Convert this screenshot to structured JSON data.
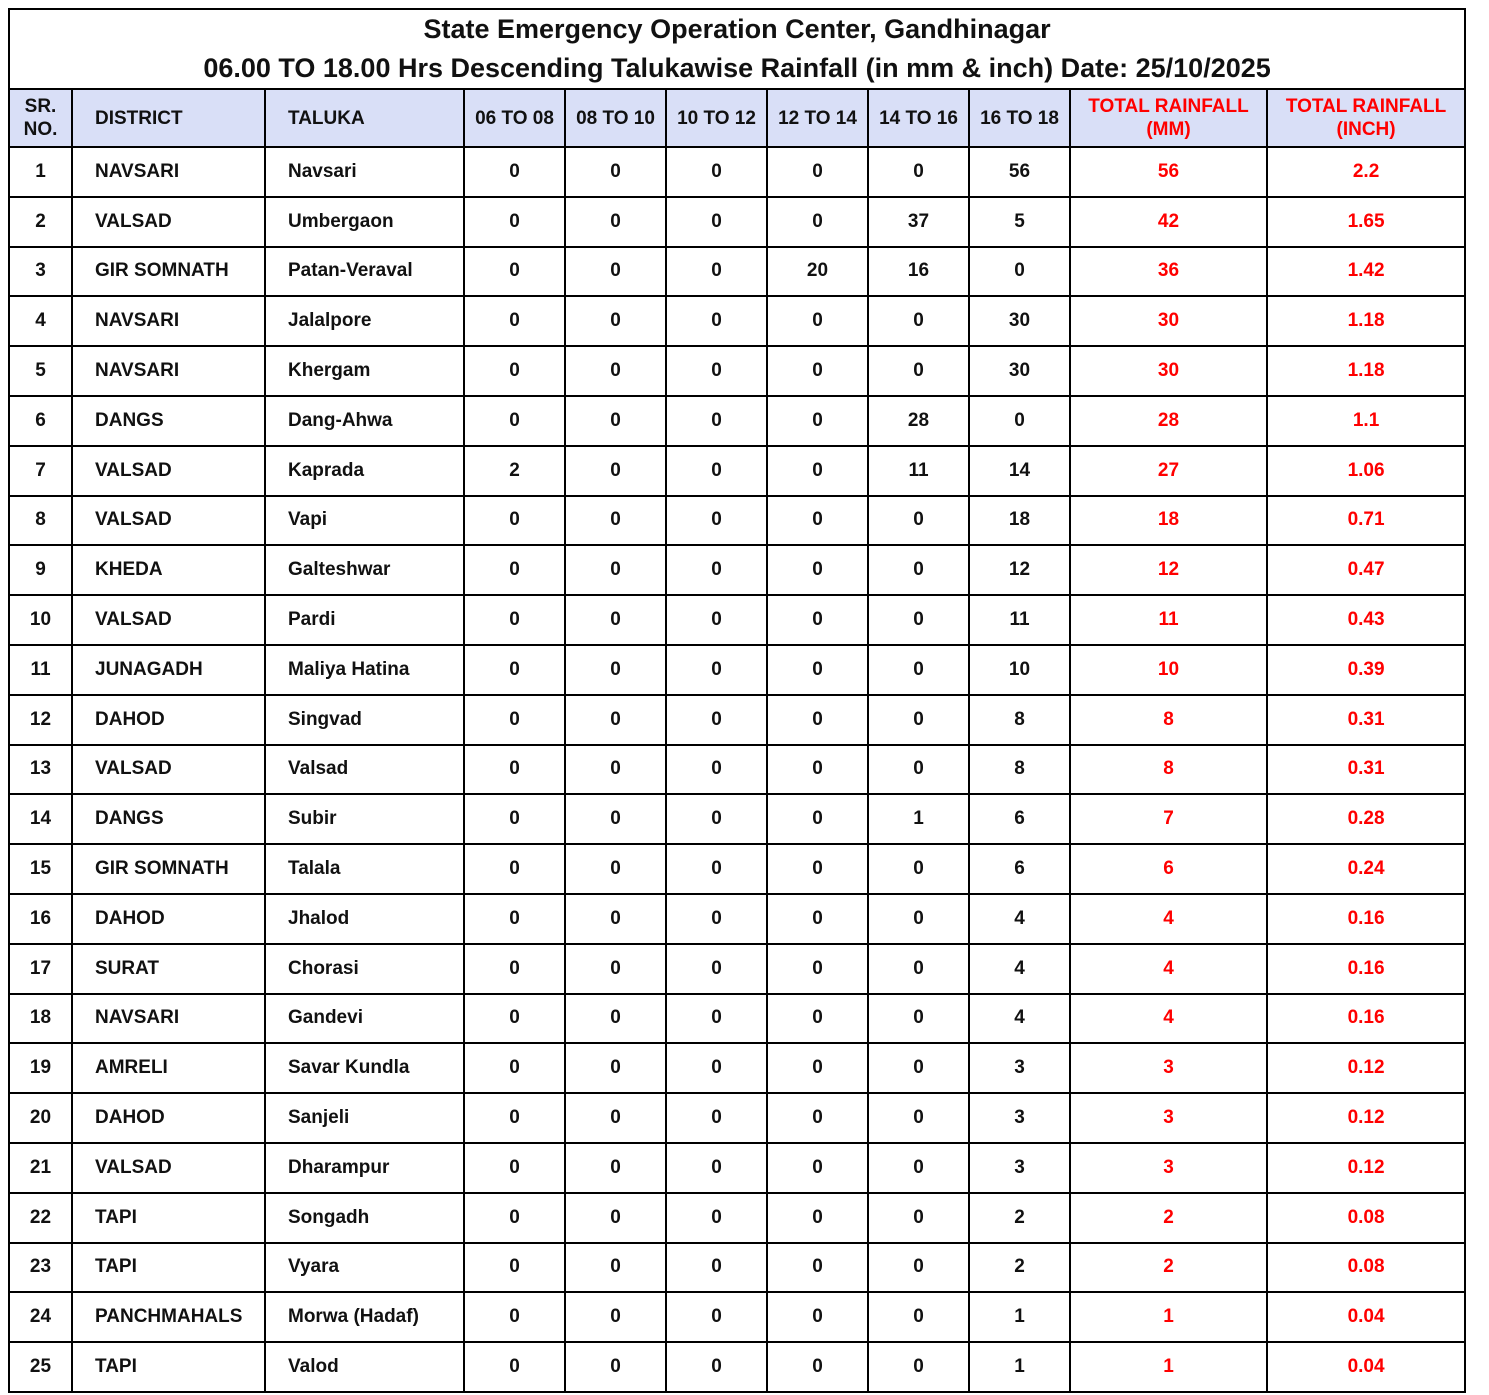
{
  "title": "State Emergency Operation Center, Gandhinagar",
  "subtitle": "06.00 TO 18.00 Hrs Descending Talukawise Rainfall (in mm & inch) Date: 25/10/2025",
  "colors": {
    "header_bg": "#d9dff7",
    "total_text": "#ff0000"
  },
  "headers": {
    "sr_line1": "SR.",
    "sr_line2": "NO.",
    "district": "DISTRICT",
    "taluka": "TALUKA",
    "h1": "06 TO 08",
    "h2": "08 TO 10",
    "h3": "10 TO 12",
    "h4": "12 TO 14",
    "h5": "14 TO 16",
    "h6": "16 TO 18",
    "mm_line1": "TOTAL RAINFALL",
    "mm_line2": "(MM)",
    "inch_line1": "TOTAL RAINFALL",
    "inch_line2": "(INCH)"
  },
  "rows": [
    [
      "1",
      "NAVSARI",
      "Navsari",
      "0",
      "0",
      "0",
      "0",
      "0",
      "56",
      "56",
      "2.2"
    ],
    [
      "2",
      "VALSAD",
      "Umbergaon",
      "0",
      "0",
      "0",
      "0",
      "37",
      "5",
      "42",
      "1.65"
    ],
    [
      "3",
      "GIR SOMNATH",
      "Patan-Veraval",
      "0",
      "0",
      "0",
      "20",
      "16",
      "0",
      "36",
      "1.42"
    ],
    [
      "4",
      "NAVSARI",
      "Jalalpore",
      "0",
      "0",
      "0",
      "0",
      "0",
      "30",
      "30",
      "1.18"
    ],
    [
      "5",
      "NAVSARI",
      "Khergam",
      "0",
      "0",
      "0",
      "0",
      "0",
      "30",
      "30",
      "1.18"
    ],
    [
      "6",
      "DANGS",
      "Dang-Ahwa",
      "0",
      "0",
      "0",
      "0",
      "28",
      "0",
      "28",
      "1.1"
    ],
    [
      "7",
      "VALSAD",
      "Kaprada",
      "2",
      "0",
      "0",
      "0",
      "11",
      "14",
      "27",
      "1.06"
    ],
    [
      "8",
      "VALSAD",
      "Vapi",
      "0",
      "0",
      "0",
      "0",
      "0",
      "18",
      "18",
      "0.71"
    ],
    [
      "9",
      "KHEDA",
      "Galteshwar",
      "0",
      "0",
      "0",
      "0",
      "0",
      "12",
      "12",
      "0.47"
    ],
    [
      "10",
      "VALSAD",
      "Pardi",
      "0",
      "0",
      "0",
      "0",
      "0",
      "11",
      "11",
      "0.43"
    ],
    [
      "11",
      "JUNAGADH",
      "Maliya Hatina",
      "0",
      "0",
      "0",
      "0",
      "0",
      "10",
      "10",
      "0.39"
    ],
    [
      "12",
      "DAHOD",
      "Singvad",
      "0",
      "0",
      "0",
      "0",
      "0",
      "8",
      "8",
      "0.31"
    ],
    [
      "13",
      "VALSAD",
      "Valsad",
      "0",
      "0",
      "0",
      "0",
      "0",
      "8",
      "8",
      "0.31"
    ],
    [
      "14",
      "DANGS",
      "Subir",
      "0",
      "0",
      "0",
      "0",
      "1",
      "6",
      "7",
      "0.28"
    ],
    [
      "15",
      "GIR SOMNATH",
      "Talala",
      "0",
      "0",
      "0",
      "0",
      "0",
      "6",
      "6",
      "0.24"
    ],
    [
      "16",
      "DAHOD",
      "Jhalod",
      "0",
      "0",
      "0",
      "0",
      "0",
      "4",
      "4",
      "0.16"
    ],
    [
      "17",
      "SURAT",
      "Chorasi",
      "0",
      "0",
      "0",
      "0",
      "0",
      "4",
      "4",
      "0.16"
    ],
    [
      "18",
      "NAVSARI",
      "Gandevi",
      "0",
      "0",
      "0",
      "0",
      "0",
      "4",
      "4",
      "0.16"
    ],
    [
      "19",
      "AMRELI",
      "Savar Kundla",
      "0",
      "0",
      "0",
      "0",
      "0",
      "3",
      "3",
      "0.12"
    ],
    [
      "20",
      "DAHOD",
      "Sanjeli",
      "0",
      "0",
      "0",
      "0",
      "0",
      "3",
      "3",
      "0.12"
    ],
    [
      "21",
      "VALSAD",
      "Dharampur",
      "0",
      "0",
      "0",
      "0",
      "0",
      "3",
      "3",
      "0.12"
    ],
    [
      "22",
      "TAPI",
      "Songadh",
      "0",
      "0",
      "0",
      "0",
      "0",
      "2",
      "2",
      "0.08"
    ],
    [
      "23",
      "TAPI",
      "Vyara",
      "0",
      "0",
      "0",
      "0",
      "0",
      "2",
      "2",
      "0.08"
    ],
    [
      "24",
      "PANCHMAHALS",
      "Morwa (Hadaf)",
      "0",
      "0",
      "0",
      "0",
      "0",
      "1",
      "1",
      "0.04"
    ],
    [
      "25",
      "TAPI",
      "Valod",
      "0",
      "0",
      "0",
      "0",
      "0",
      "1",
      "1",
      "0.04"
    ]
  ]
}
